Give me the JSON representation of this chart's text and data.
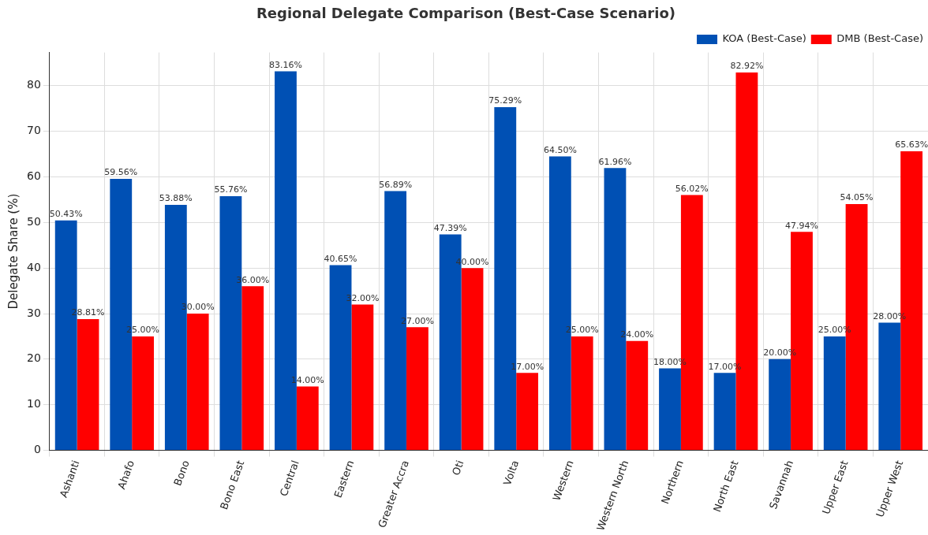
{
  "chart_data": {
    "type": "bar",
    "title": "Regional Delegate Comparison (Best-Case Scenario)",
    "ylabel": "Delegate Share (%)",
    "categories": [
      "Ashanti",
      "Ahafo",
      "Bono",
      "Bono East",
      "Central",
      "Eastern",
      "Greater Accra",
      "Oti",
      "Volta",
      "Western",
      "Western North",
      "Northern",
      "North East",
      "Savannah",
      "Upper East",
      "Upper West"
    ],
    "series": [
      {
        "name": "KOA (Best-Case)",
        "color": "#0050b4",
        "values": [
          50.43,
          59.56,
          53.88,
          55.76,
          83.16,
          40.65,
          56.89,
          47.39,
          75.29,
          64.5,
          61.96,
          18,
          17,
          20,
          25,
          28
        ],
        "value_labels": [
          "50.43%",
          "59.56%",
          "53.88%",
          "55.76%",
          "83.16%",
          "40.65%",
          "56.89%",
          "47.39%",
          "75.29%",
          "64.50%",
          "61.96%",
          "18.00%",
          "17.00%",
          "20.00%",
          "25.00%",
          "28.00%"
        ]
      },
      {
        "name": "DMB (Best-Case)",
        "color": "#ff0000",
        "values": [
          28.81,
          25,
          30,
          36,
          14,
          32,
          27,
          40,
          17,
          25,
          24,
          56.02,
          82.92,
          47.94,
          54.05,
          65.63
        ],
        "value_labels": [
          "28.81%",
          "25.00%",
          "30.00%",
          "36.00%",
          "14.00%",
          "32.00%",
          "27.00%",
          "40.00%",
          "17.00%",
          "25.00%",
          "24.00%",
          "56.02%",
          "82.92%",
          "47.94%",
          "54.05%",
          "65.63%"
        ]
      }
    ],
    "ylim": [
      0,
      87.3
    ],
    "yticks": [
      0,
      10,
      20,
      30,
      40,
      50,
      60,
      70,
      80
    ],
    "grid": true,
    "legend": "top right"
  }
}
